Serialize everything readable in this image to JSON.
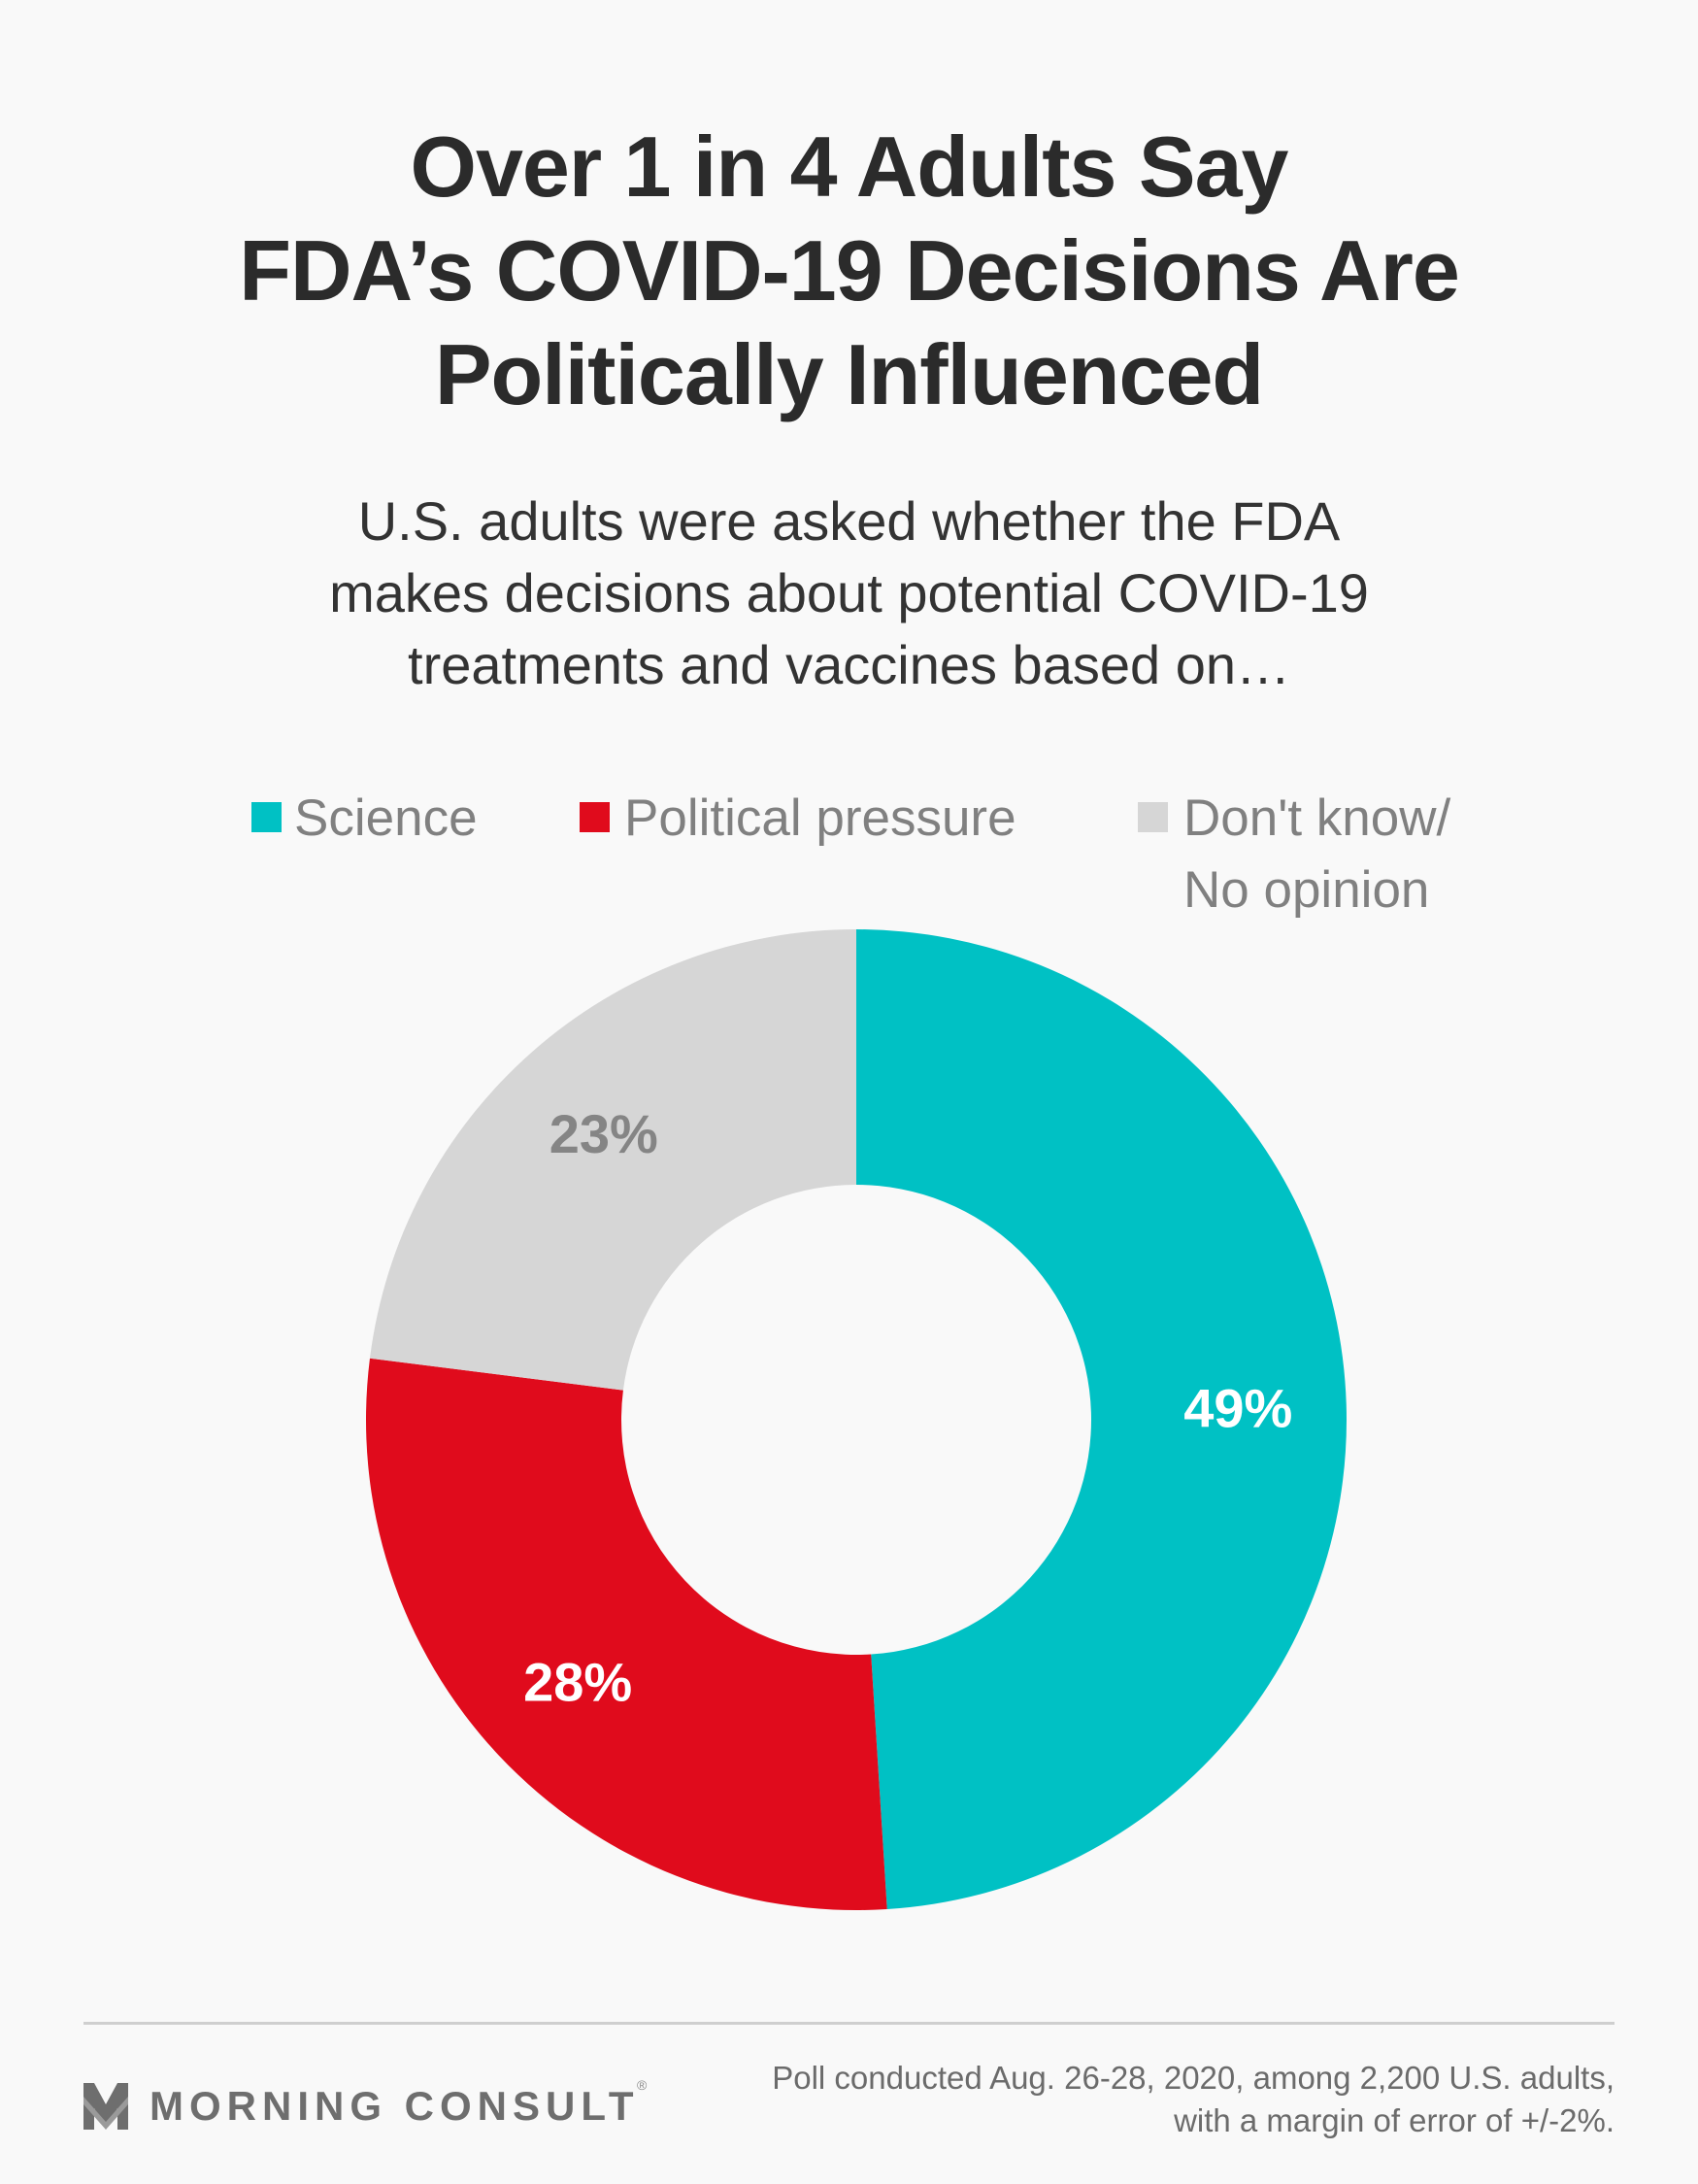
{
  "title": {
    "lines": [
      "Over 1 in 4 Adults Say",
      "FDA’s COVID-19 Decisions Are",
      "Politically Influenced"
    ]
  },
  "subtitle": {
    "lines": [
      "U.S. adults were asked whether the FDA",
      "makes decisions about potential COVID-19",
      "treatments and vaccines based on…"
    ]
  },
  "legend": [
    {
      "label": "Science",
      "color": "#00c1c4"
    },
    {
      "label": "Political pressure",
      "color": "#e00b1c"
    },
    {
      "label_lines": [
        "Don't know/",
        "No opinion"
      ],
      "color": "#d6d6d6"
    }
  ],
  "chart_data": {
    "type": "pie",
    "variant": "donut",
    "title": "Over 1 in 4 Adults Say FDA’s COVID-19 Decisions Are Politically Influenced",
    "categories": [
      "Science",
      "Political pressure",
      "Don't know/No opinion"
    ],
    "values": [
      49,
      28,
      23
    ],
    "labels": [
      "49%",
      "28%",
      "23%"
    ],
    "colors": [
      "#00c1c4",
      "#e00b1c",
      "#d6d6d6"
    ],
    "label_colors": [
      "#ffffff",
      "#ffffff",
      "#858585"
    ],
    "start": "12 o'clock",
    "direction": "clockwise",
    "legend_position": "top"
  },
  "footer": {
    "brand": "MORNING CONSULT",
    "brand_mark": "®",
    "note_lines": [
      "Poll conducted Aug. 26-28, 2020, among 2,200 U.S. adults,",
      "with a margin of error of +/-2%."
    ]
  }
}
